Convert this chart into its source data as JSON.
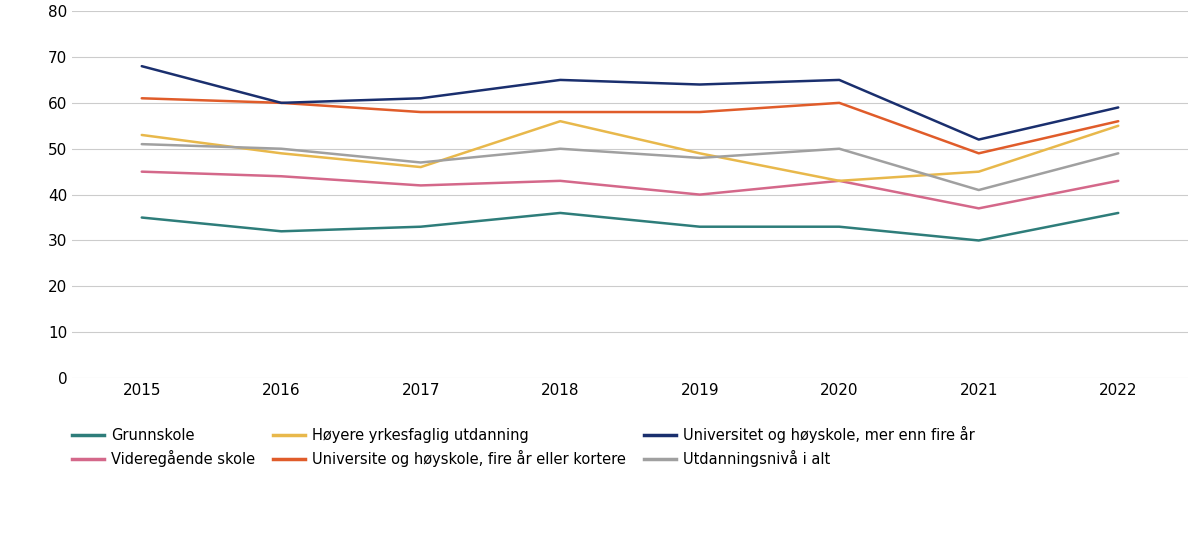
{
  "years": [
    2015,
    2016,
    2017,
    2018,
    2019,
    2020,
    2021,
    2022
  ],
  "series": [
    {
      "label": "Grunnskole",
      "color": "#2e7d7a",
      "values": [
        35,
        32,
        33,
        36,
        33,
        33,
        30,
        36
      ]
    },
    {
      "label": "Videregående skole",
      "color": "#d4688a",
      "values": [
        45,
        44,
        42,
        43,
        40,
        43,
        37,
        43
      ]
    },
    {
      "label": "Høyere yrkesfaglig utdanning",
      "color": "#e8b84b",
      "values": [
        53,
        49,
        46,
        56,
        49,
        43,
        45,
        55
      ]
    },
    {
      "label": "Universite og høyskole, fire år eller kortere",
      "color": "#e05c2a",
      "values": [
        61,
        60,
        58,
        58,
        58,
        60,
        49,
        56
      ]
    },
    {
      "label": "Universitet og høyskole, mer enn fire år",
      "color": "#1a2f6e",
      "values": [
        68,
        60,
        61,
        65,
        64,
        65,
        52,
        59
      ]
    },
    {
      "label": "Utdanningsnivå i alt",
      "color": "#a0a0a0",
      "values": [
        51,
        50,
        47,
        50,
        48,
        50,
        41,
        49
      ]
    }
  ],
  "legend_order": [
    0,
    1,
    2,
    3,
    4,
    5
  ],
  "ylim": [
    0,
    80
  ],
  "yticks": [
    0,
    10,
    20,
    30,
    40,
    50,
    60,
    70,
    80
  ],
  "figsize": [
    12.0,
    5.56
  ],
  "dpi": 100,
  "grid_color": "#cccccc",
  "line_width": 1.8,
  "font_size": 11,
  "legend_fontsize": 10.5
}
